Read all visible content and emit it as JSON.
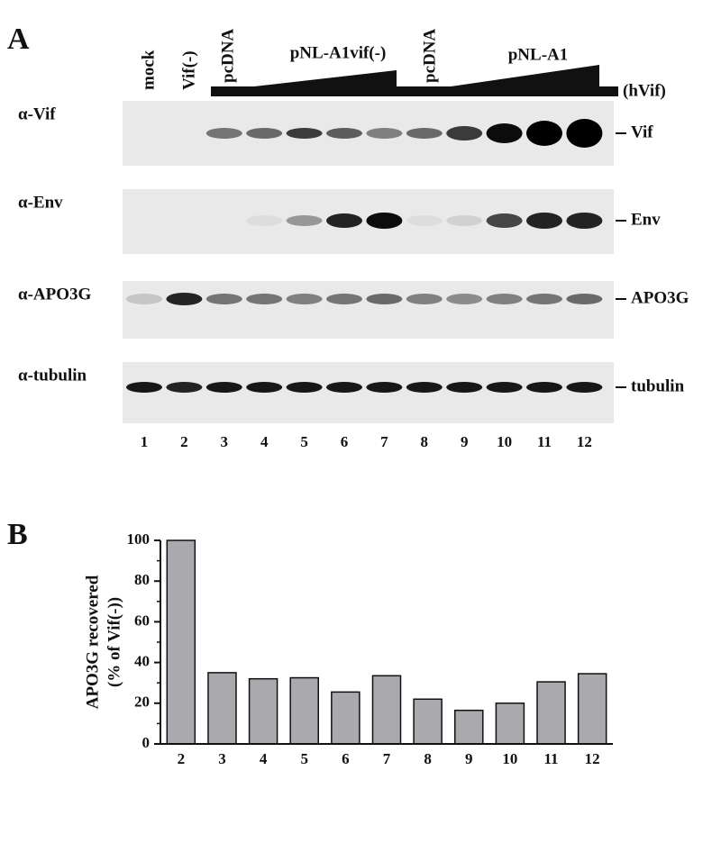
{
  "panel_a": {
    "label": "A",
    "lane_headers": [
      "mock",
      "Vif(-)",
      "pcDNA",
      "pNL-A1vif(-)",
      "pcDNA",
      "pNL-A1"
    ],
    "hvif_label": "(hVif)",
    "antibodies": [
      "α-Vif",
      "α-Env",
      "α-APO3G",
      "α-tubulin"
    ],
    "band_labels": [
      "Vif",
      "Env",
      "APO3G",
      "tubulin"
    ],
    "lanes": [
      1,
      2,
      3,
      4,
      5,
      6,
      7,
      8,
      9,
      10,
      11,
      12
    ]
  },
  "chart_data": {
    "type": "bar",
    "panel_label": "B",
    "y_label": [
      "APO3G recovered",
      "(% of Vif(-))"
    ],
    "categories": [
      "2",
      "3",
      "4",
      "5",
      "6",
      "7",
      "8",
      "9",
      "10",
      "11",
      "12"
    ],
    "values": [
      100,
      35,
      32,
      32.5,
      25.5,
      33.5,
      22,
      16.5,
      20,
      30.5,
      34.5
    ],
    "color": "#a9a9ae",
    "ylim": [
      0,
      100
    ],
    "yticks": [
      0,
      20,
      40,
      60,
      80,
      100
    ],
    "yminorticks": [
      10,
      30,
      50,
      70,
      90
    ]
  }
}
